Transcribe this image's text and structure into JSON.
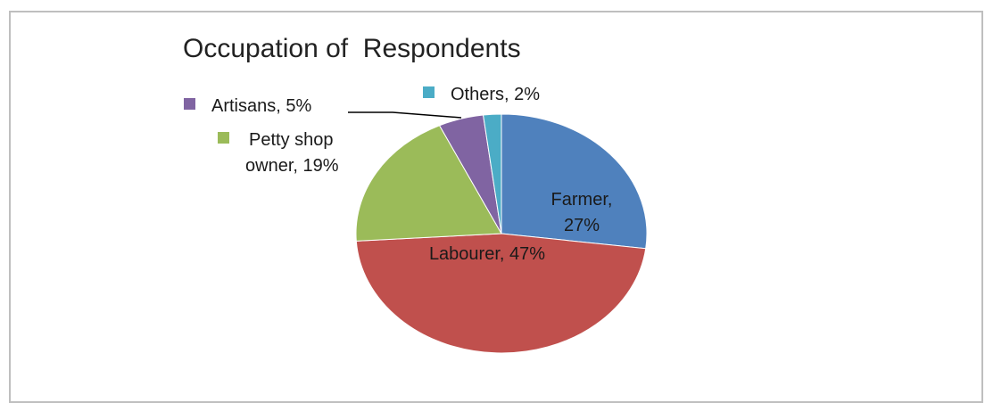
{
  "chart_data": {
    "type": "pie",
    "title": "Occupation of  Respondents",
    "slices": [
      {
        "label": "Farmer",
        "value": 27,
        "display": "27%",
        "color": "#4f81bd"
      },
      {
        "label": "Labourer",
        "value": 47,
        "display": "47%",
        "color": "#c0504d"
      },
      {
        "label": "Petty shop owner",
        "value": 19,
        "display": "19%",
        "color": "#9bbb59"
      },
      {
        "label": "Artisans",
        "value": 5,
        "display": "5%",
        "color": "#8064a2"
      },
      {
        "label": "Others",
        "value": 2,
        "display": "2%",
        "color": "#4bacc6"
      }
    ],
    "label_text": {
      "farmer_line1": "Farmer,",
      "farmer_line2": "27%",
      "labourer": "Labourer, 47%",
      "petty_line1": "Petty shop",
      "petty_line2": "owner, 19%",
      "artisans": "Artisans, 5%",
      "others": "Others, 2%"
    },
    "legend": "none"
  }
}
